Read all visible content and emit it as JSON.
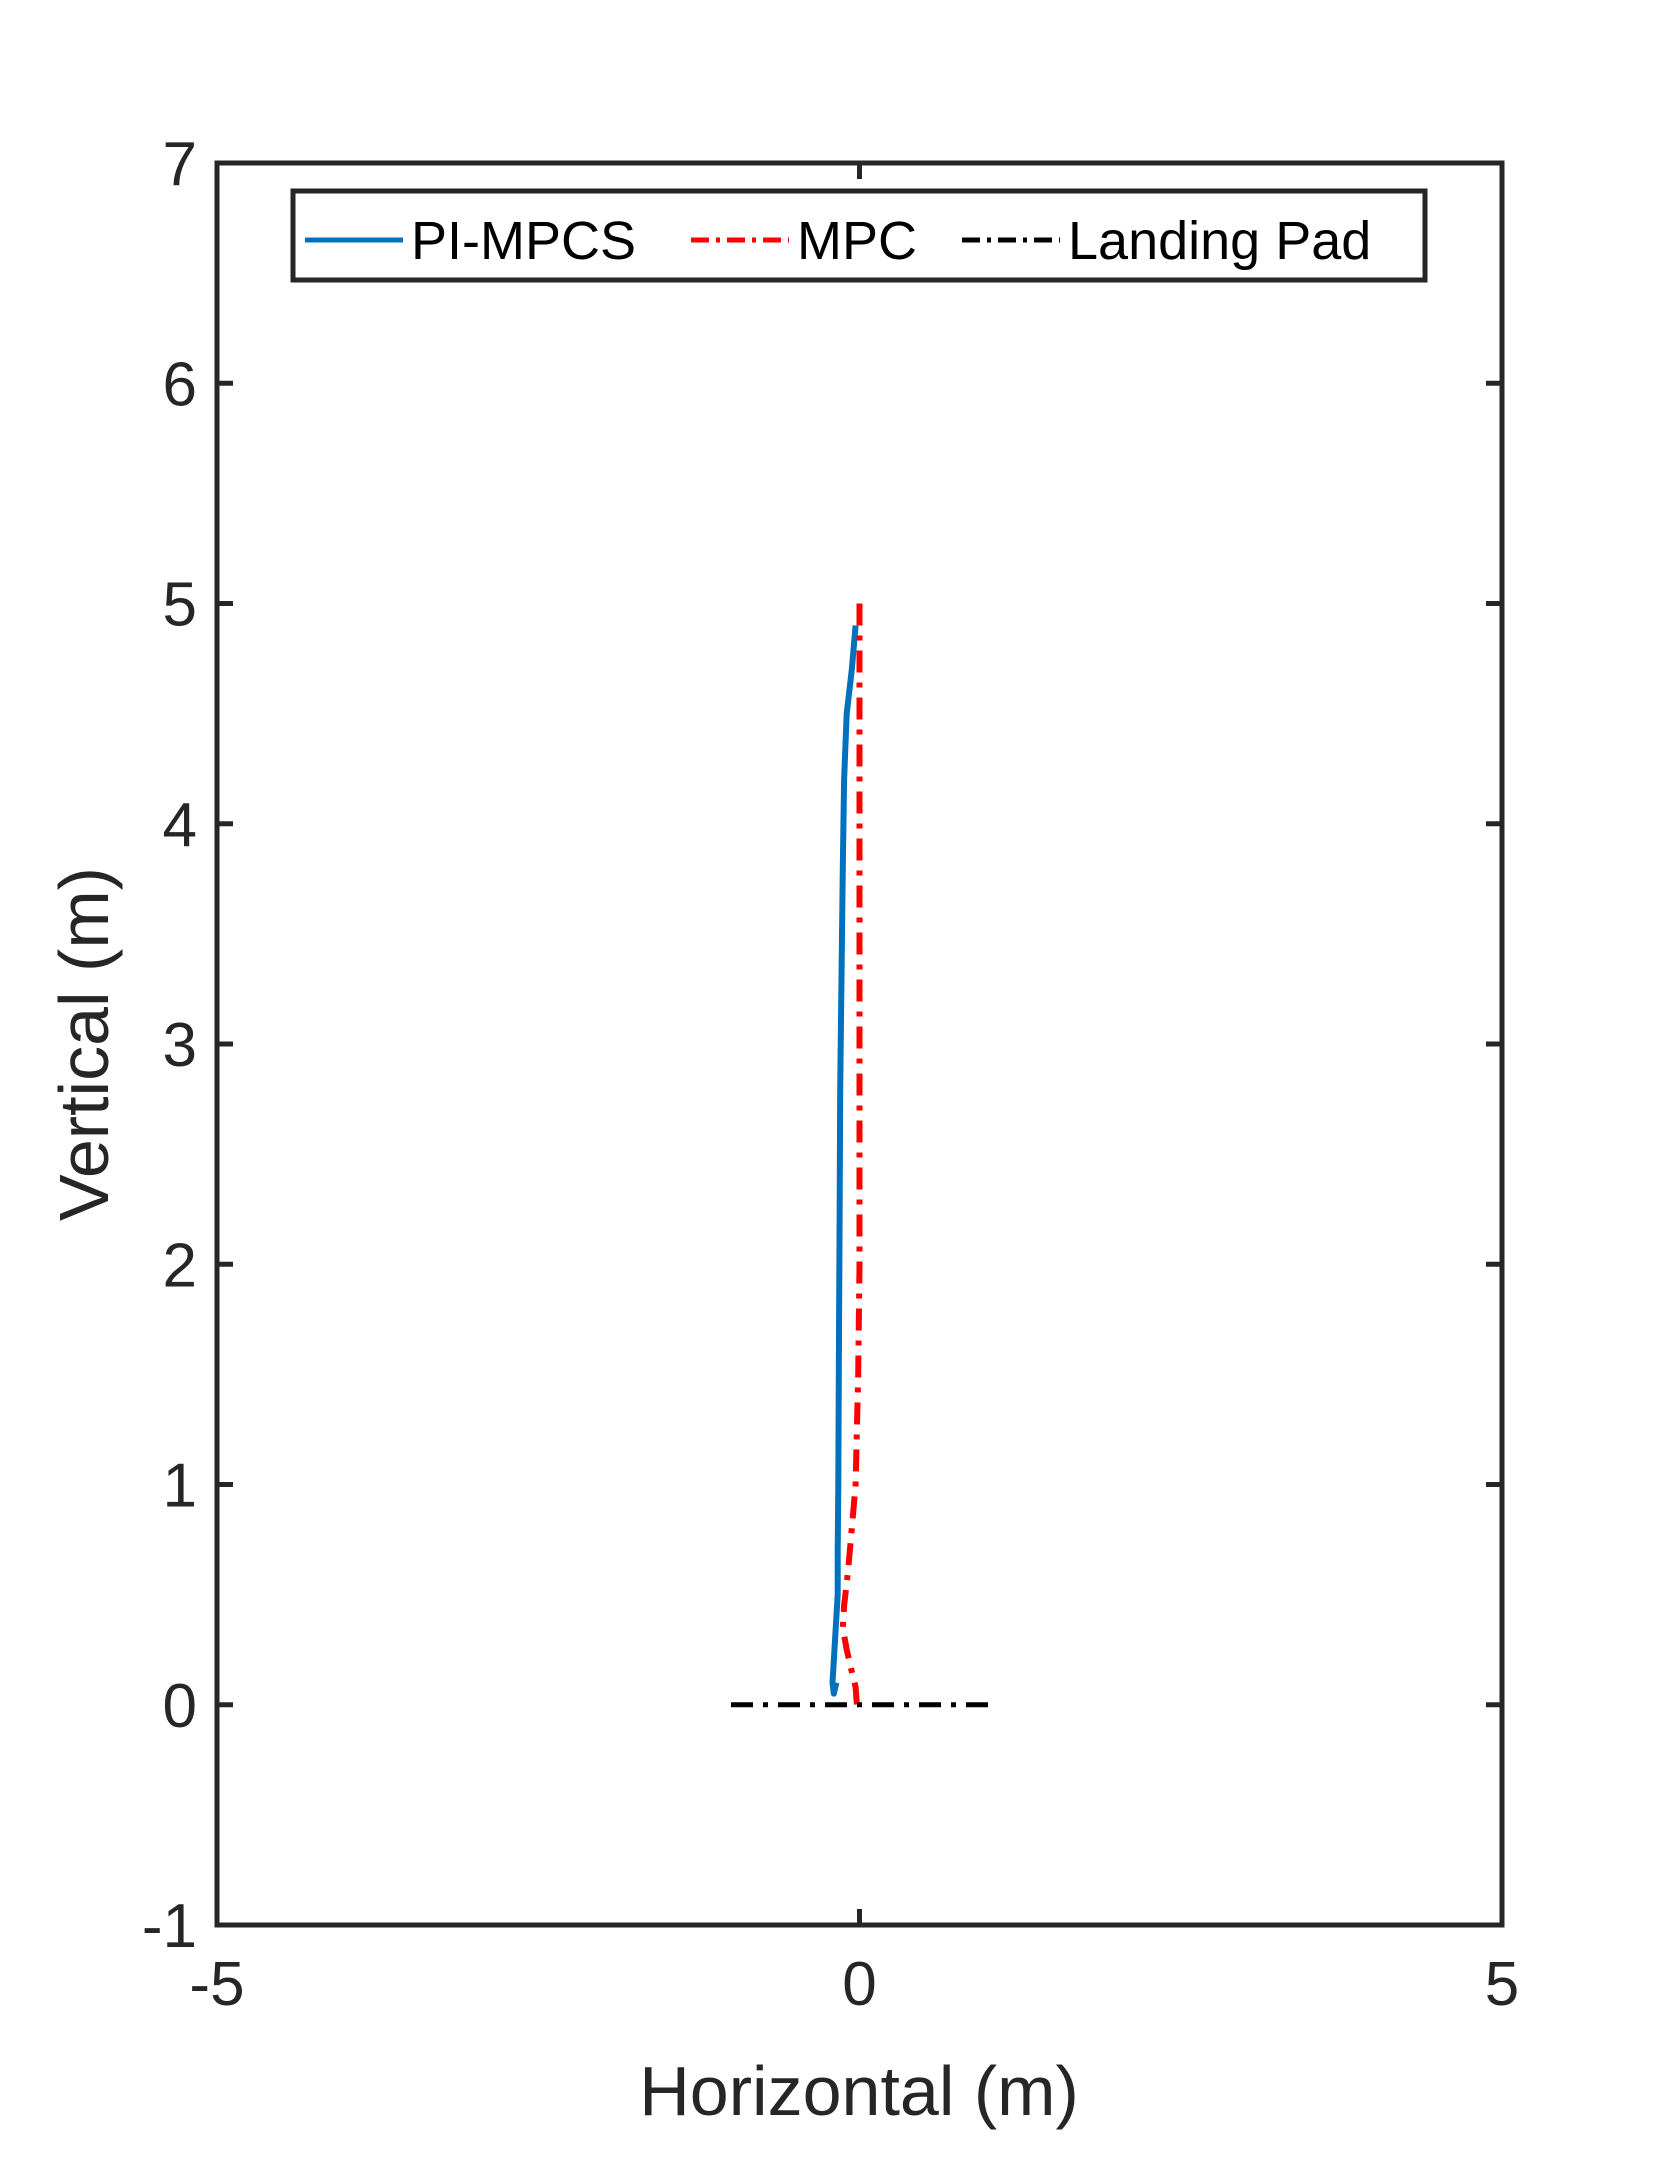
{
  "chart_data": {
    "type": "line",
    "title": "",
    "xlabel": "Horizontal (m)",
    "ylabel": "Vertical (m)",
    "xlim": [
      -5,
      5
    ],
    "ylim": [
      -1,
      7
    ],
    "xticks": [
      -5,
      0,
      5
    ],
    "xtick_labels": [
      "-5",
      "0",
      "5"
    ],
    "yticks": [
      -1,
      0,
      1,
      2,
      3,
      4,
      5,
      6,
      7
    ],
    "ytick_labels": [
      "-1",
      "0",
      "1",
      "2",
      "3",
      "4",
      "5",
      "6",
      "7"
    ],
    "grid": false,
    "legend": {
      "placement": "top-center",
      "orientation": "horizontal",
      "entries": [
        "PI-MPCS",
        "MPC",
        "Landing Pad"
      ]
    },
    "series": [
      {
        "name": "PI-MPCS",
        "color": "#0072BD",
        "line_style": "solid",
        "x": [
          -0.03,
          -0.06,
          -0.1,
          -0.12,
          -0.13,
          -0.14,
          -0.15,
          -0.155,
          -0.16,
          -0.165,
          -0.17,
          -0.17,
          -0.18,
          -0.19,
          -0.2,
          -0.21,
          -0.2,
          -0.18
        ],
        "y": [
          4.9,
          4.7,
          4.5,
          4.2,
          3.8,
          3.3,
          2.8,
          2.2,
          1.6,
          1.0,
          0.7,
          0.5,
          0.4,
          0.3,
          0.2,
          0.1,
          0.05,
          0.1
        ]
      },
      {
        "name": "MPC",
        "color": "#FF0000",
        "line_style": "dash-dot",
        "x": [
          0.0,
          0.0,
          0.0,
          0.0,
          0.0,
          -0.01,
          -0.03,
          -0.06,
          -0.09,
          -0.12,
          -0.13,
          -0.1,
          -0.06,
          -0.03,
          -0.02
        ],
        "y": [
          5.0,
          4.5,
          4.0,
          3.0,
          2.0,
          1.5,
          1.0,
          0.8,
          0.6,
          0.45,
          0.35,
          0.25,
          0.15,
          0.08,
          0.0
        ]
      },
      {
        "name": "Landing Pad",
        "color": "#000000",
        "line_style": "dash-dot",
        "x": [
          -1.0,
          1.0
        ],
        "y": [
          0.0,
          0.0
        ]
      }
    ]
  },
  "colors": {
    "axis": "#262626",
    "background": "#ffffff",
    "legend_border": "#262626"
  }
}
